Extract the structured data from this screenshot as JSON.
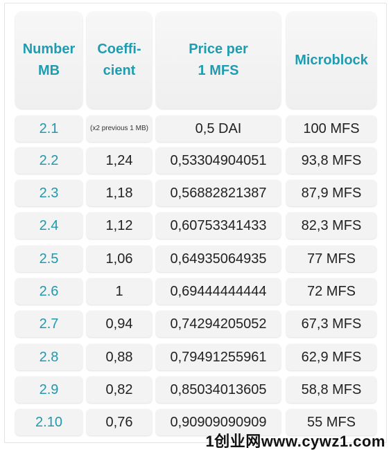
{
  "table": {
    "headers": [
      "Number MB",
      "Coeffi-cient",
      "Price per 1 MFS",
      "Microblock"
    ],
    "header_lines": [
      [
        "Number",
        "MB"
      ],
      [
        "Coeffi-",
        "cient"
      ],
      [
        "Price per",
        "1 MFS"
      ],
      [
        "Microblock"
      ]
    ],
    "rows": [
      [
        "2.1",
        "(x2 previous 1 MB)",
        "0,5 DAI",
        "100 MFS"
      ],
      [
        "2.2",
        "1,24",
        "0,53304904051",
        "93,8 MFS"
      ],
      [
        "2.3",
        "1,18",
        "0,56882821387",
        "87,9 MFS"
      ],
      [
        "2.4",
        "1,12",
        "0,60753341433",
        "82,3 MFS"
      ],
      [
        "2.5",
        "1,06",
        "0,64935064935",
        "77 MFS"
      ],
      [
        "2.6",
        "1",
        "0,69444444444",
        "72 MFS"
      ],
      [
        "2.7",
        "0,94",
        "0,74294205052",
        "67,3 MFS"
      ],
      [
        "2.8",
        "0,88",
        "0,79491255961",
        "62,9 MFS"
      ],
      [
        "2.9",
        "0,82",
        "0,85034013605",
        "58,8 MFS"
      ],
      [
        "2.10",
        "0,76",
        "0,90909090909",
        "55 MFS"
      ]
    ]
  },
  "watermark": "1创业网www.cywz1.com",
  "colors": {
    "accent": "#1f9cb0",
    "cell_bg": "#f3f3f3",
    "text": "#222222"
  }
}
